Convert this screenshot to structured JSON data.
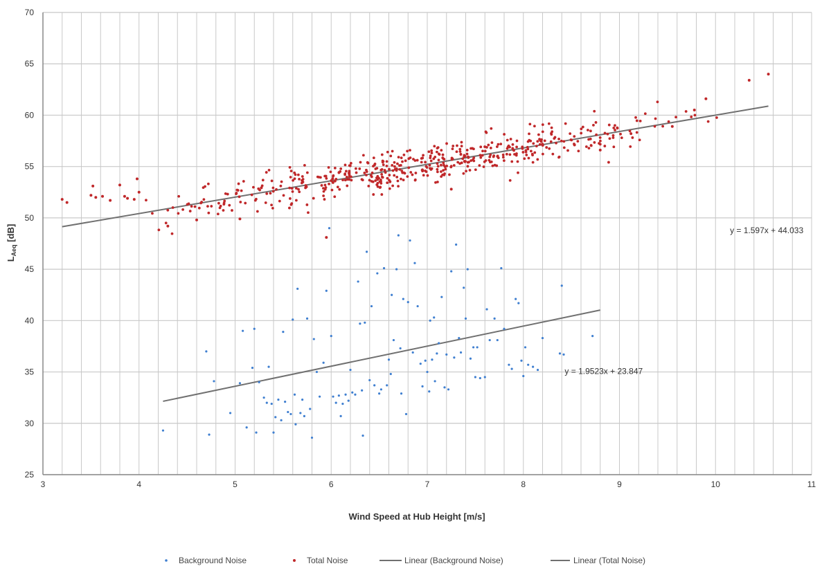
{
  "chart_data": {
    "type": "scatter",
    "title": "",
    "xlabel": "Wind Speed at Hub Height [m/s]",
    "ylabel": "L",
    "ylabel_sub": "Aeq",
    "ylabel_unit": " [dB]",
    "xlim": [
      3,
      11
    ],
    "ylim": [
      25,
      70
    ],
    "x_ticks": [
      3,
      4,
      5,
      6,
      7,
      8,
      9,
      10,
      11
    ],
    "y_ticks": [
      25,
      30,
      35,
      40,
      45,
      50,
      55,
      60,
      65,
      70
    ],
    "x_minor_step": 0.2,
    "grid": true,
    "legend_position": "bottom",
    "colors": {
      "background": "#3f7fd0",
      "total": "#c0282a",
      "trend": "#707070",
      "grid": "#c8c8c8",
      "axis": "#888888"
    },
    "series": [
      {
        "name": "Background Noise",
        "kind": "scatter",
        "color": "#3f7fd0",
        "points": [
          [
            4.25,
            29.3
          ],
          [
            4.7,
            37.0
          ],
          [
            4.73,
            28.9
          ],
          [
            4.78,
            34.1
          ],
          [
            4.95,
            31.0
          ],
          [
            5.05,
            33.9
          ],
          [
            5.08,
            39.0
          ],
          [
            5.12,
            29.6
          ],
          [
            5.18,
            35.4
          ],
          [
            5.2,
            39.2
          ],
          [
            5.22,
            29.1
          ],
          [
            5.25,
            34.0
          ],
          [
            5.3,
            32.5
          ],
          [
            5.33,
            32.0
          ],
          [
            5.35,
            35.5
          ],
          [
            5.38,
            31.9
          ],
          [
            5.4,
            29.1
          ],
          [
            5.42,
            30.6
          ],
          [
            5.45,
            32.3
          ],
          [
            5.48,
            30.3
          ],
          [
            5.5,
            38.9
          ],
          [
            5.52,
            32.1
          ],
          [
            5.55,
            31.1
          ],
          [
            5.58,
            30.9
          ],
          [
            5.6,
            40.1
          ],
          [
            5.62,
            32.8
          ],
          [
            5.63,
            29.9
          ],
          [
            5.65,
            43.1
          ],
          [
            5.68,
            31.0
          ],
          [
            5.7,
            32.3
          ],
          [
            5.72,
            30.7
          ],
          [
            5.75,
            40.2
          ],
          [
            5.78,
            31.4
          ],
          [
            5.8,
            28.6
          ],
          [
            5.82,
            38.2
          ],
          [
            5.85,
            35.0
          ],
          [
            5.88,
            32.6
          ],
          [
            5.92,
            35.9
          ],
          [
            5.95,
            42.9
          ],
          [
            5.98,
            49.0
          ],
          [
            6.0,
            38.5
          ],
          [
            6.02,
            32.6
          ],
          [
            6.05,
            32.0
          ],
          [
            6.08,
            32.7
          ],
          [
            6.1,
            30.7
          ],
          [
            6.12,
            31.9
          ],
          [
            6.15,
            32.8
          ],
          [
            6.18,
            32.2
          ],
          [
            6.2,
            35.2
          ],
          [
            6.22,
            33.0
          ],
          [
            6.25,
            32.8
          ],
          [
            6.28,
            43.8
          ],
          [
            6.3,
            39.7
          ],
          [
            6.32,
            33.2
          ],
          [
            6.33,
            28.8
          ],
          [
            6.35,
            39.8
          ],
          [
            6.37,
            46.7
          ],
          [
            6.4,
            34.2
          ],
          [
            6.42,
            41.4
          ],
          [
            6.45,
            33.7
          ],
          [
            6.48,
            44.6
          ],
          [
            6.5,
            32.9
          ],
          [
            6.52,
            33.3
          ],
          [
            6.55,
            45.1
          ],
          [
            6.58,
            33.7
          ],
          [
            6.6,
            36.2
          ],
          [
            6.62,
            34.8
          ],
          [
            6.63,
            42.5
          ],
          [
            6.65,
            38.1
          ],
          [
            6.68,
            45.0
          ],
          [
            6.7,
            48.3
          ],
          [
            6.72,
            37.3
          ],
          [
            6.73,
            32.9
          ],
          [
            6.75,
            42.1
          ],
          [
            6.78,
            30.9
          ],
          [
            6.8,
            41.8
          ],
          [
            6.82,
            47.8
          ],
          [
            6.85,
            36.9
          ],
          [
            6.87,
            45.6
          ],
          [
            6.9,
            41.4
          ],
          [
            6.93,
            35.8
          ],
          [
            6.95,
            33.6
          ],
          [
            6.98,
            36.1
          ],
          [
            7.0,
            35.0
          ],
          [
            7.02,
            33.1
          ],
          [
            7.03,
            40.0
          ],
          [
            7.05,
            36.2
          ],
          [
            7.07,
            40.3
          ],
          [
            7.08,
            34.1
          ],
          [
            7.1,
            36.8
          ],
          [
            7.12,
            37.8
          ],
          [
            7.15,
            42.3
          ],
          [
            7.18,
            33.5
          ],
          [
            7.2,
            36.7
          ],
          [
            7.22,
            33.3
          ],
          [
            7.25,
            44.8
          ],
          [
            7.28,
            36.4
          ],
          [
            7.3,
            47.4
          ],
          [
            7.33,
            38.3
          ],
          [
            7.35,
            36.9
          ],
          [
            7.38,
            43.2
          ],
          [
            7.4,
            40.2
          ],
          [
            7.42,
            45.0
          ],
          [
            7.45,
            36.3
          ],
          [
            7.48,
            37.4
          ],
          [
            7.5,
            34.5
          ],
          [
            7.52,
            37.4
          ],
          [
            7.55,
            34.4
          ],
          [
            7.6,
            34.5
          ],
          [
            7.62,
            41.1
          ],
          [
            7.65,
            38.1
          ],
          [
            7.7,
            40.2
          ],
          [
            7.73,
            38.1
          ],
          [
            7.77,
            45.1
          ],
          [
            7.8,
            39.2
          ],
          [
            7.85,
            35.7
          ],
          [
            7.88,
            35.3
          ],
          [
            7.92,
            42.1
          ],
          [
            7.95,
            41.7
          ],
          [
            7.98,
            36.1
          ],
          [
            8.0,
            34.6
          ],
          [
            8.02,
            37.4
          ],
          [
            8.05,
            35.7
          ],
          [
            8.1,
            35.5
          ],
          [
            8.15,
            35.2
          ],
          [
            8.2,
            38.3
          ],
          [
            8.38,
            36.8
          ],
          [
            8.4,
            43.4
          ],
          [
            8.42,
            36.7
          ],
          [
            8.72,
            38.5
          ]
        ]
      },
      {
        "name": "Total Noise",
        "kind": "scatter",
        "color": "#c0282a"
      },
      {
        "name": "Linear (Background Noise)",
        "kind": "trendline",
        "color": "#707070",
        "slope": 1.9523,
        "intercept": 23.847,
        "x_range": [
          4.25,
          8.8
        ]
      },
      {
        "name": "Linear (Total Noise)",
        "kind": "trendline",
        "color": "#707070",
        "slope": 1.597,
        "intercept": 44.033,
        "x_range": [
          3.2,
          10.55
        ]
      }
    ],
    "total_noise_points": {
      "outliers": [
        [
          3.2,
          51.8
        ],
        [
          3.25,
          51.5
        ],
        [
          3.5,
          52.2
        ],
        [
          3.52,
          53.1
        ],
        [
          3.55,
          52.0
        ],
        [
          3.62,
          52.1
        ],
        [
          3.7,
          51.7
        ],
        [
          3.8,
          53.2
        ],
        [
          3.85,
          52.1
        ],
        [
          3.88,
          51.9
        ],
        [
          3.95,
          51.8
        ],
        [
          3.98,
          53.8
        ],
        [
          4.0,
          52.5
        ],
        [
          4.3,
          49.2
        ],
        [
          4.6,
          49.8
        ],
        [
          5.05,
          49.9
        ],
        [
          5.95,
          48.1
        ],
        [
          7.25,
          52.8
        ],
        [
          8.8,
          56.6
        ],
        [
          9.12,
          58.2
        ],
        [
          9.55,
          58.9
        ],
        [
          9.78,
          60.5
        ],
        [
          9.9,
          61.6
        ],
        [
          10.35,
          63.4
        ],
        [
          10.55,
          64.0
        ]
      ],
      "band": {
        "x_range": [
          4.05,
          10.05
        ],
        "count": 560,
        "spread": 1.6,
        "slope": 1.597,
        "intercept": 44.033
      }
    },
    "annotations": [
      {
        "text": "y = 1.597x + 44.033",
        "x": 10.15,
        "y": 48.5
      },
      {
        "text": "y = 1.9523x + 23.847",
        "x": 8.43,
        "y": 34.8
      }
    ]
  }
}
